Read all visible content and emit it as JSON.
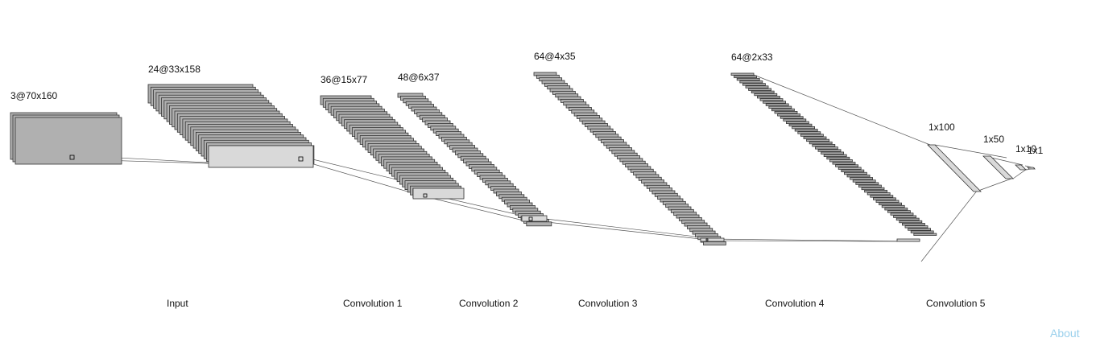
{
  "layers": [
    {
      "id": "input",
      "shape": "3@70x160",
      "fill": "#b0b0b0"
    },
    {
      "id": "l1",
      "shape": "24@33x158",
      "fill": "#b0b0b0"
    },
    {
      "id": "l2",
      "shape": "36@15x77",
      "fill": "#b0b0b0"
    },
    {
      "id": "l3",
      "shape": "48@6x37",
      "fill": "#b0b0b0"
    },
    {
      "id": "l4",
      "shape": "64@4x35",
      "fill": "#b0b0b0"
    },
    {
      "id": "l5",
      "shape": "64@2x33",
      "fill": "#b0b0b0"
    }
  ],
  "dense": [
    {
      "id": "d1",
      "shape": "1x100"
    },
    {
      "id": "d2",
      "shape": "1x50"
    },
    {
      "id": "d3",
      "shape": "1x10"
    },
    {
      "id": "d4",
      "shape": "1x1"
    }
  ],
  "stages": [
    "Input",
    "Convolution 1",
    "Convolution 2",
    "Convolution 3",
    "Convolution 4",
    "Convolution 5"
  ],
  "about_label": "About",
  "colors": {
    "feature_map": "#b0b0b0",
    "selected_map": "#d9d9d9",
    "stroke": "#333333",
    "about_link": "#9ad0ec"
  }
}
